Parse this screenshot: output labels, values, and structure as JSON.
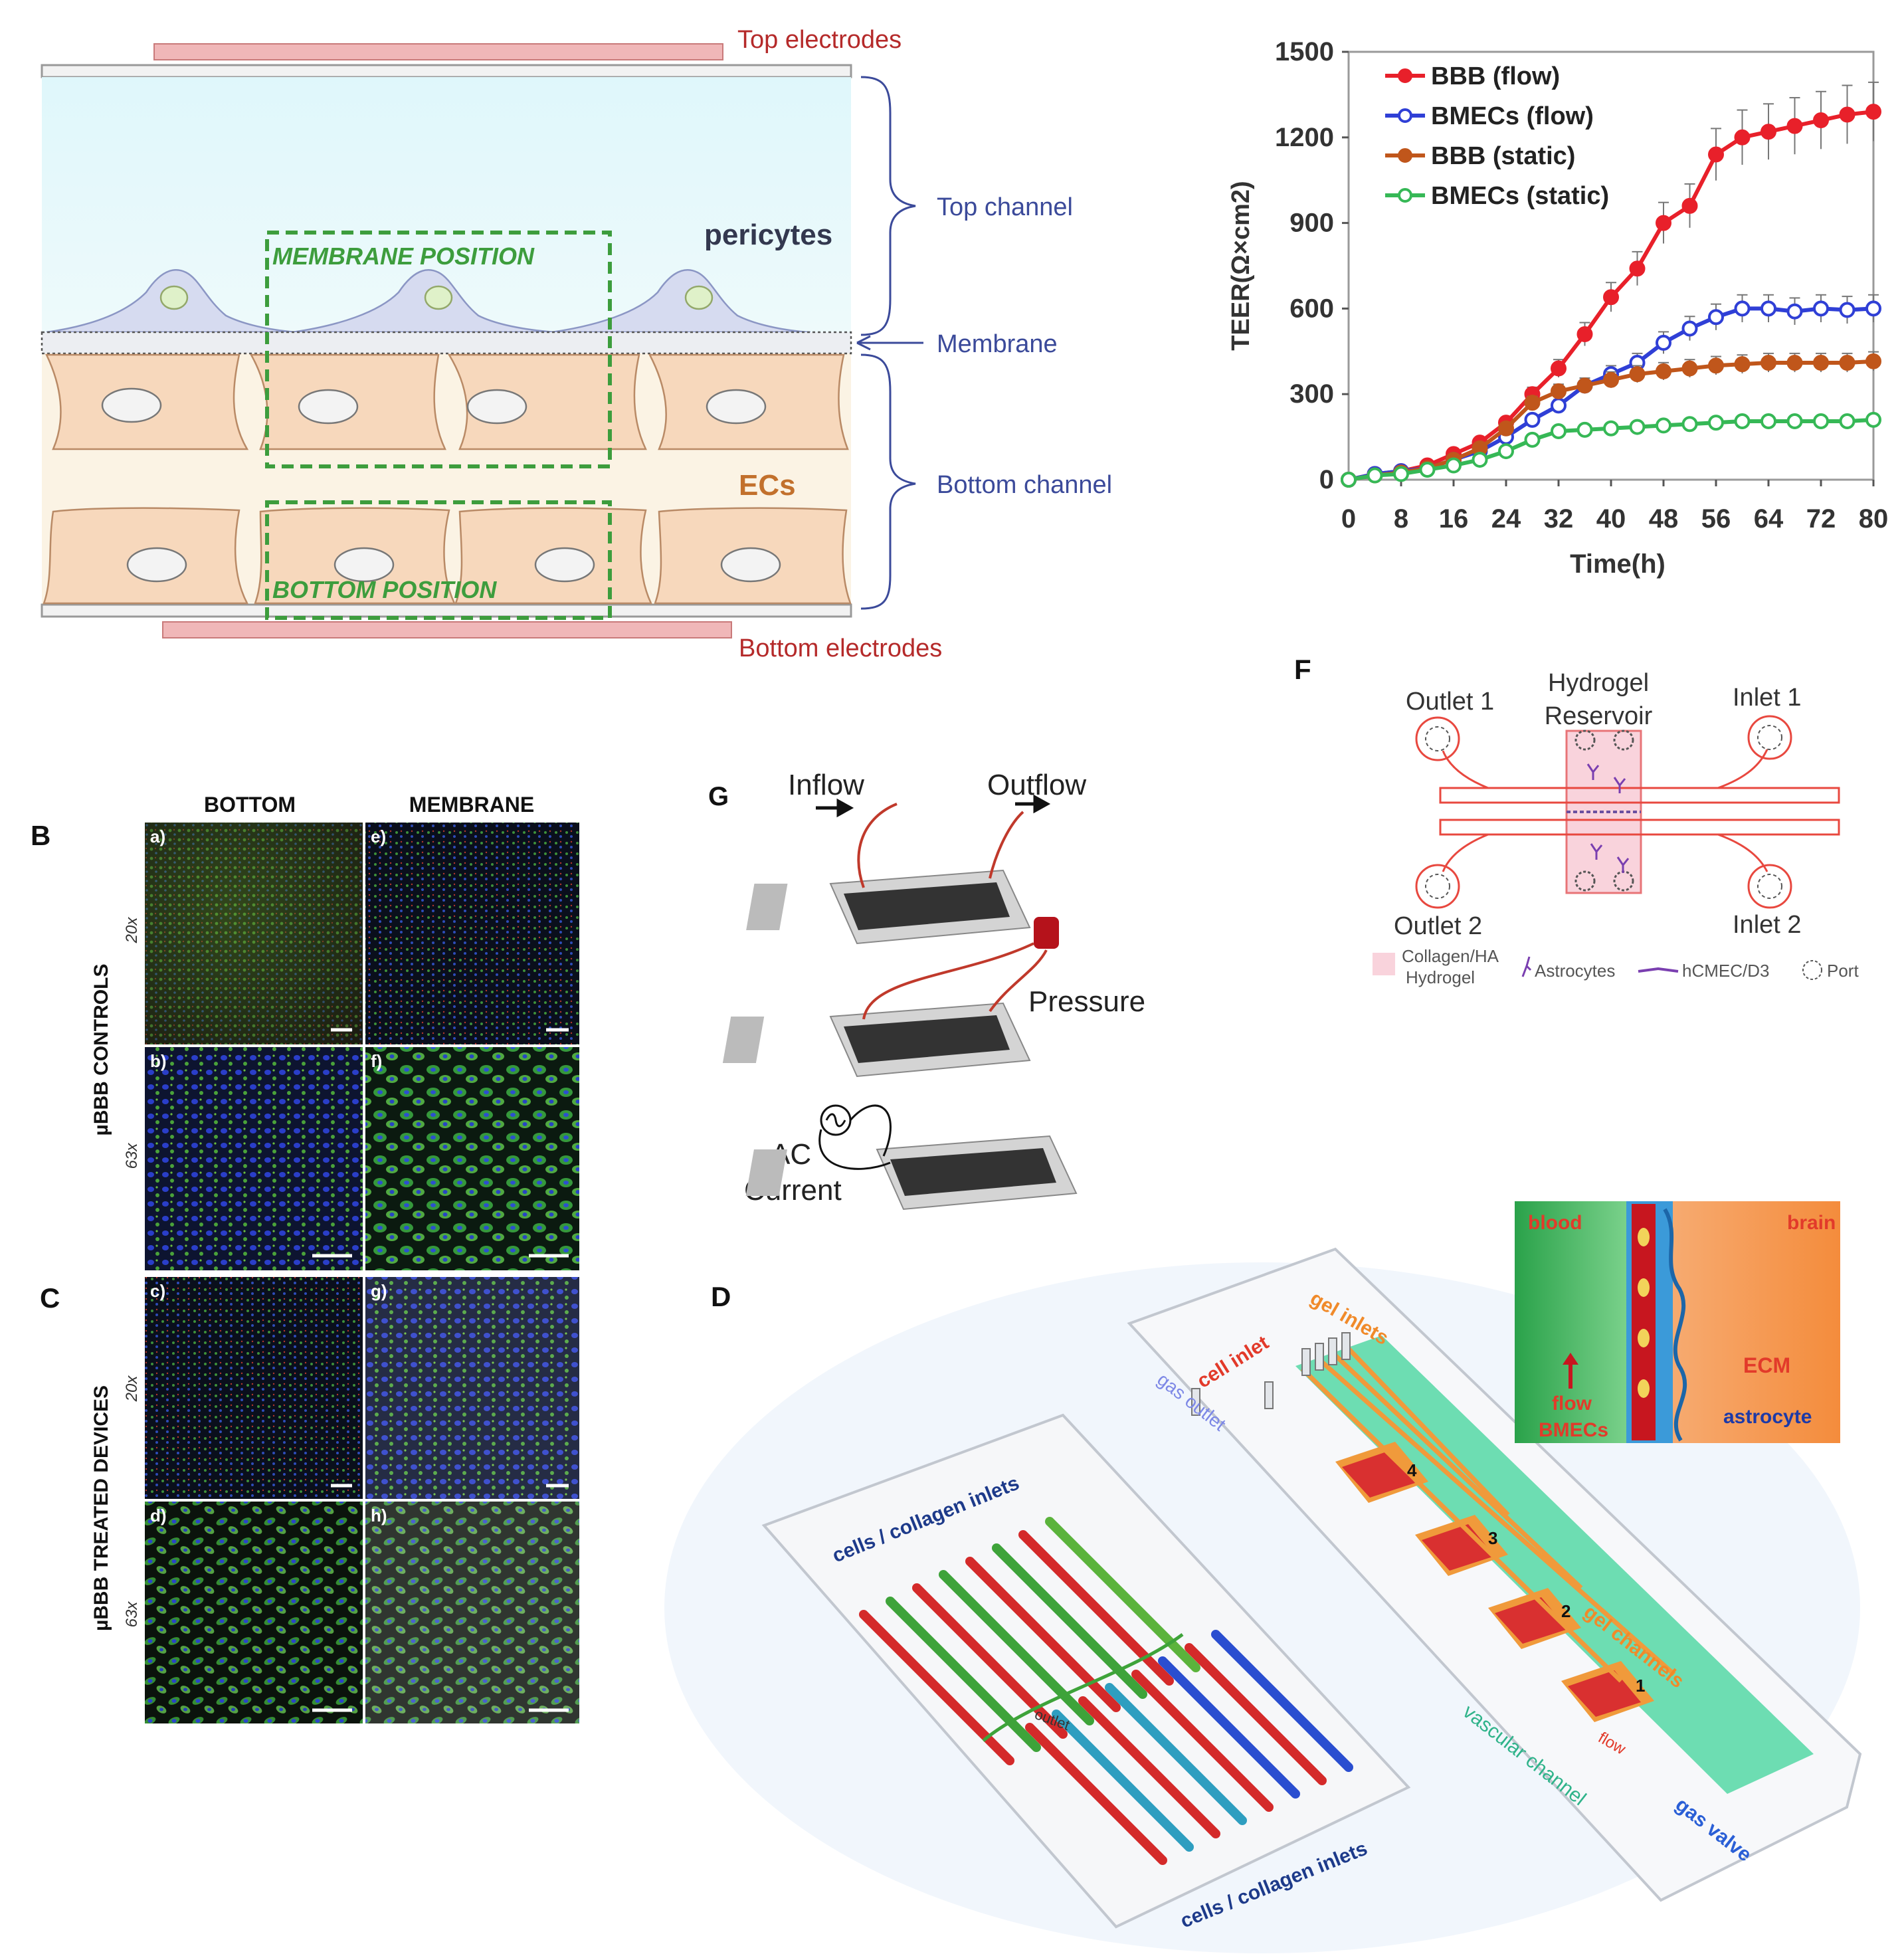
{
  "panelA": {
    "top_electrodes": "Top electrodes",
    "bottom_electrodes": "Bottom electrodes",
    "pericytes": "pericytes",
    "ecs": "ECs",
    "membrane_position": "MEMBRANE POSITION",
    "bottom_position": "BOTTOM POSITION",
    "top_channel": "Top channel",
    "membrane": "Membrane",
    "bottom_channel": "Bottom channel"
  },
  "panelBC": {
    "label_b": "B",
    "label_c": "C",
    "col_bottom": "BOTTOM",
    "col_membrane": "MEMBRANE",
    "row_controls": "µBBB CONTROLS",
    "row_treated": "µBBB TREATED DEVICES",
    "mag_20x": "20x",
    "mag_63x": "63x",
    "tiles": [
      "a)",
      "e)",
      "b)",
      "f)",
      "c)",
      "g)",
      "d)",
      "h)"
    ]
  },
  "panelG": {
    "label": "G",
    "inflow": "Inflow",
    "outflow": "Outflow",
    "pressure": "Pressure",
    "ac": "AC",
    "current": "Current"
  },
  "panelF": {
    "label": "F",
    "outlet1": "Outlet 1",
    "outlet2": "Outlet 2",
    "inlet1": "Inlet 1",
    "inlet2": "Inlet 2",
    "hydrogel": "Hydrogel",
    "reservoir": "Reservoir",
    "legend_collagen": "Collagen/HA",
    "legend_hydrogel": "Hydrogel",
    "legend_astro": "Astrocytes",
    "legend_hcmec": "hCMEC/D3",
    "legend_port": "Port"
  },
  "panelD": {
    "label": "D",
    "cells_collagen_top": "cells / collagen inlets",
    "cells_collagen_bottom": "cells / collagen inlets",
    "outlet": "outlet",
    "gas_outlet": "gas outlet",
    "cell_inlet": "cell inlet",
    "gel_inlets": "gel inlets",
    "gel_channels": "gel channels",
    "vascular_channel": "vascular channel",
    "gas_valve": "gas valve",
    "flow": "flow",
    "nums": [
      "1",
      "2",
      "3",
      "4"
    ],
    "inset_blood": "blood",
    "inset_brain": "brain",
    "inset_flow": "flow",
    "inset_bmecs": "BMECs",
    "inset_ecm": "ECM",
    "inset_astro": "astrocyte"
  },
  "chart_data": {
    "type": "line",
    "xlabel": "Time(h)",
    "ylabel": "TEER(Ω×cm2)",
    "xlim": [
      0,
      80
    ],
    "ylim": [
      0,
      1500
    ],
    "x_ticks": [
      0,
      8,
      16,
      24,
      32,
      40,
      48,
      56,
      64,
      72,
      80
    ],
    "y_ticks": [
      0,
      300,
      600,
      900,
      1200,
      1500
    ],
    "x": [
      0,
      4,
      8,
      12,
      16,
      20,
      24,
      28,
      32,
      36,
      40,
      44,
      48,
      52,
      56,
      60,
      64,
      68,
      72,
      76,
      80
    ],
    "legend_position": "top-left",
    "series": [
      {
        "name": "BBB (flow)",
        "color": "#e8202a",
        "marker": "filled",
        "values": [
          0,
          20,
          30,
          50,
          90,
          130,
          200,
          300,
          390,
          510,
          640,
          740,
          900,
          960,
          1140,
          1200,
          1220,
          1240,
          1260,
          1280,
          1290
        ]
      },
      {
        "name": "BMECs (flow)",
        "color": "#2f3fd6",
        "marker": "open",
        "values": [
          0,
          20,
          30,
          40,
          70,
          100,
          150,
          210,
          260,
          330,
          370,
          410,
          480,
          530,
          570,
          600,
          600,
          590,
          600,
          595,
          600
        ]
      },
      {
        "name": "BBB (static)",
        "color": "#c0561b",
        "marker": "filled",
        "values": [
          0,
          15,
          25,
          40,
          70,
          110,
          180,
          270,
          310,
          330,
          350,
          370,
          380,
          390,
          400,
          405,
          410,
          410,
          410,
          410,
          415
        ]
      },
      {
        "name": "BMECs (static)",
        "color": "#36b856",
        "marker": "open",
        "values": [
          0,
          15,
          20,
          35,
          50,
          70,
          100,
          140,
          170,
          175,
          180,
          185,
          190,
          195,
          200,
          205,
          205,
          205,
          205,
          205,
          210
        ]
      }
    ]
  }
}
